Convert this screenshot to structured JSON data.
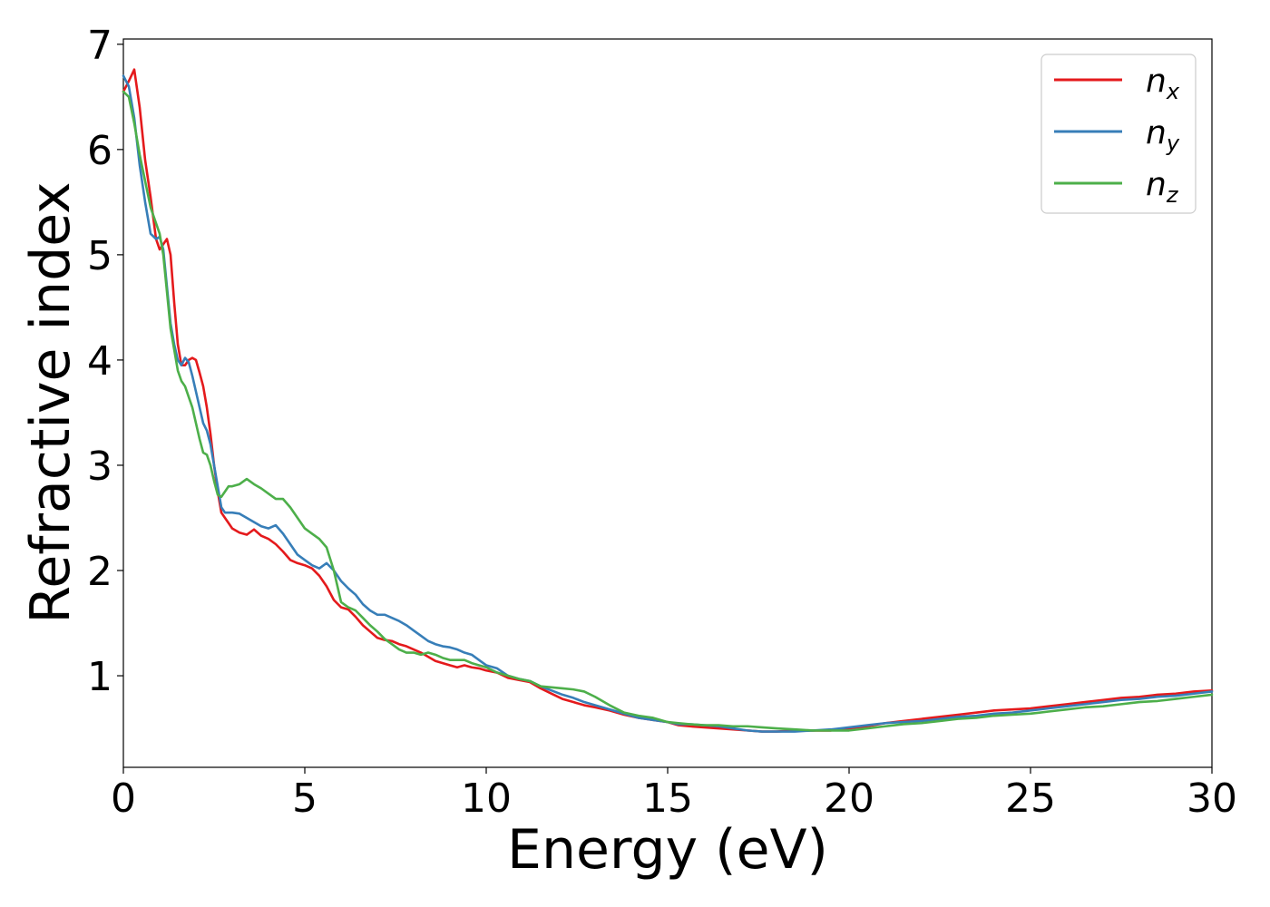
{
  "chart_data": {
    "type": "line",
    "title": "",
    "xlabel": "Energy (eV)",
    "ylabel": "Refractive index",
    "xlim": [
      0,
      30
    ],
    "ylim": [
      0.13,
      7.05
    ],
    "xticks": [
      0,
      5,
      10,
      15,
      20,
      25,
      30
    ],
    "yticks": [
      1,
      2,
      3,
      4,
      5,
      6,
      7
    ],
    "grid": false,
    "legend_position": "top-right",
    "series": [
      {
        "name": "n_x",
        "legend_base": "n",
        "legend_sub": "x",
        "color": "#e41a1c",
        "x": [
          0,
          0.15,
          0.3,
          0.45,
          0.6,
          0.75,
          0.9,
          1.0,
          1.1,
          1.2,
          1.3,
          1.4,
          1.5,
          1.6,
          1.7,
          1.8,
          1.9,
          2.0,
          2.1,
          2.2,
          2.3,
          2.4,
          2.5,
          2.6,
          2.7,
          2.8,
          2.9,
          3.0,
          3.2,
          3.4,
          3.6,
          3.8,
          4.0,
          4.2,
          4.4,
          4.6,
          4.8,
          5.0,
          5.2,
          5.4,
          5.6,
          5.8,
          6.0,
          6.2,
          6.4,
          6.6,
          6.8,
          7.0,
          7.2,
          7.4,
          7.6,
          7.8,
          8.0,
          8.2,
          8.4,
          8.6,
          8.8,
          9.0,
          9.2,
          9.4,
          9.6,
          9.8,
          10.0,
          10.3,
          10.6,
          10.9,
          11.2,
          11.5,
          11.8,
          12.1,
          12.4,
          12.7,
          13.0,
          13.4,
          13.8,
          14.2,
          14.6,
          15.0,
          15.3,
          15.6,
          16.0,
          16.4,
          16.8,
          17.2,
          17.6,
          18.0,
          18.5,
          19.0,
          19.5,
          20.0,
          20.5,
          21.0,
          21.5,
          22.0,
          22.5,
          23.0,
          23.5,
          24.0,
          24.5,
          25.0,
          25.5,
          26.0,
          26.5,
          27.0,
          27.5,
          28.0,
          28.5,
          29.0,
          29.5,
          30.0
        ],
        "y": [
          6.55,
          6.65,
          6.76,
          6.4,
          5.9,
          5.55,
          5.15,
          5.05,
          5.1,
          5.15,
          5.0,
          4.55,
          4.15,
          3.95,
          3.95,
          4.0,
          4.02,
          4.0,
          3.88,
          3.75,
          3.55,
          3.3,
          3.0,
          2.75,
          2.55,
          2.5,
          2.45,
          2.4,
          2.36,
          2.34,
          2.39,
          2.33,
          2.3,
          2.25,
          2.18,
          2.1,
          2.07,
          2.05,
          2.02,
          1.95,
          1.85,
          1.72,
          1.65,
          1.63,
          1.56,
          1.48,
          1.42,
          1.36,
          1.34,
          1.33,
          1.3,
          1.28,
          1.25,
          1.22,
          1.18,
          1.14,
          1.12,
          1.1,
          1.08,
          1.1,
          1.08,
          1.07,
          1.05,
          1.03,
          0.98,
          0.96,
          0.94,
          0.88,
          0.83,
          0.78,
          0.75,
          0.72,
          0.7,
          0.67,
          0.63,
          0.6,
          0.58,
          0.56,
          0.53,
          0.52,
          0.51,
          0.5,
          0.49,
          0.48,
          0.47,
          0.47,
          0.48,
          0.48,
          0.48,
          0.5,
          0.52,
          0.55,
          0.57,
          0.59,
          0.61,
          0.63,
          0.65,
          0.67,
          0.68,
          0.69,
          0.71,
          0.73,
          0.75,
          0.77,
          0.79,
          0.8,
          0.82,
          0.83,
          0.85,
          0.86
        ]
      },
      {
        "name": "n_y",
        "legend_base": "n",
        "legend_sub": "y",
        "color": "#377eb8",
        "x": [
          0,
          0.15,
          0.3,
          0.45,
          0.6,
          0.75,
          0.9,
          1.0,
          1.1,
          1.2,
          1.3,
          1.4,
          1.5,
          1.6,
          1.7,
          1.8,
          1.9,
          2.0,
          2.1,
          2.2,
          2.3,
          2.4,
          2.5,
          2.6,
          2.7,
          2.8,
          2.9,
          3.0,
          3.2,
          3.4,
          3.6,
          3.8,
          4.0,
          4.2,
          4.4,
          4.6,
          4.8,
          5.0,
          5.2,
          5.4,
          5.6,
          5.8,
          6.0,
          6.2,
          6.4,
          6.6,
          6.8,
          7.0,
          7.2,
          7.4,
          7.6,
          7.8,
          8.0,
          8.2,
          8.4,
          8.6,
          8.8,
          9.0,
          9.2,
          9.4,
          9.6,
          9.8,
          10.0,
          10.3,
          10.6,
          10.9,
          11.2,
          11.5,
          11.8,
          12.1,
          12.4,
          12.7,
          13.0,
          13.4,
          13.8,
          14.2,
          14.6,
          15.0,
          15.3,
          15.6,
          16.0,
          16.4,
          16.8,
          17.2,
          17.6,
          18.0,
          18.5,
          19.0,
          19.5,
          20.0,
          20.5,
          21.0,
          21.5,
          22.0,
          22.5,
          23.0,
          23.5,
          24.0,
          24.5,
          25.0,
          25.5,
          26.0,
          26.5,
          27.0,
          27.5,
          28.0,
          28.5,
          29.0,
          29.5,
          30.0
        ],
        "y": [
          6.7,
          6.6,
          6.3,
          5.85,
          5.5,
          5.2,
          5.15,
          5.17,
          5.05,
          4.7,
          4.35,
          4.15,
          4.0,
          3.95,
          4.02,
          3.98,
          3.85,
          3.7,
          3.55,
          3.4,
          3.33,
          3.2,
          3.0,
          2.8,
          2.6,
          2.55,
          2.55,
          2.55,
          2.54,
          2.5,
          2.46,
          2.42,
          2.4,
          2.43,
          2.35,
          2.25,
          2.15,
          2.1,
          2.05,
          2.02,
          2.07,
          2.0,
          1.9,
          1.83,
          1.77,
          1.68,
          1.62,
          1.58,
          1.58,
          1.55,
          1.52,
          1.48,
          1.43,
          1.38,
          1.33,
          1.3,
          1.28,
          1.27,
          1.25,
          1.22,
          1.2,
          1.15,
          1.1,
          1.07,
          1.0,
          0.97,
          0.95,
          0.9,
          0.86,
          0.82,
          0.79,
          0.75,
          0.72,
          0.68,
          0.64,
          0.6,
          0.58,
          0.56,
          0.54,
          0.54,
          0.53,
          0.52,
          0.5,
          0.48,
          0.47,
          0.47,
          0.47,
          0.48,
          0.49,
          0.51,
          0.53,
          0.55,
          0.56,
          0.57,
          0.59,
          0.61,
          0.62,
          0.64,
          0.65,
          0.67,
          0.69,
          0.71,
          0.73,
          0.75,
          0.77,
          0.78,
          0.8,
          0.81,
          0.83,
          0.85
        ]
      },
      {
        "name": "n_z",
        "legend_base": "n",
        "legend_sub": "z",
        "color": "#4daf4a",
        "x": [
          0,
          0.15,
          0.3,
          0.45,
          0.6,
          0.75,
          0.9,
          1.0,
          1.1,
          1.2,
          1.3,
          1.4,
          1.5,
          1.6,
          1.7,
          1.8,
          1.9,
          2.0,
          2.1,
          2.2,
          2.3,
          2.4,
          2.5,
          2.6,
          2.7,
          2.8,
          2.9,
          3.0,
          3.2,
          3.4,
          3.6,
          3.8,
          4.0,
          4.2,
          4.4,
          4.6,
          4.8,
          5.0,
          5.2,
          5.4,
          5.6,
          5.8,
          6.0,
          6.2,
          6.4,
          6.6,
          6.8,
          7.0,
          7.2,
          7.4,
          7.6,
          7.8,
          8.0,
          8.2,
          8.4,
          8.6,
          8.8,
          9.0,
          9.2,
          9.4,
          9.6,
          9.8,
          10.0,
          10.3,
          10.6,
          10.9,
          11.2,
          11.5,
          11.8,
          12.1,
          12.4,
          12.7,
          13.0,
          13.4,
          13.8,
          14.2,
          14.6,
          15.0,
          15.3,
          15.6,
          16.0,
          16.4,
          16.8,
          17.2,
          17.6,
          18.0,
          18.5,
          19.0,
          19.5,
          20.0,
          20.5,
          21.0,
          21.5,
          22.0,
          22.5,
          23.0,
          23.5,
          24.0,
          24.5,
          25.0,
          25.5,
          26.0,
          26.5,
          27.0,
          27.5,
          28.0,
          28.5,
          29.0,
          29.5,
          30.0
        ],
        "y": [
          6.55,
          6.5,
          6.25,
          5.95,
          5.7,
          5.45,
          5.3,
          5.2,
          5.0,
          4.65,
          4.3,
          4.1,
          3.9,
          3.8,
          3.75,
          3.65,
          3.55,
          3.4,
          3.25,
          3.12,
          3.1,
          3.0,
          2.85,
          2.72,
          2.7,
          2.75,
          2.8,
          2.8,
          2.82,
          2.87,
          2.82,
          2.78,
          2.73,
          2.68,
          2.68,
          2.6,
          2.5,
          2.4,
          2.35,
          2.3,
          2.22,
          2.0,
          1.7,
          1.65,
          1.62,
          1.55,
          1.48,
          1.42,
          1.35,
          1.3,
          1.25,
          1.22,
          1.22,
          1.2,
          1.22,
          1.2,
          1.17,
          1.15,
          1.15,
          1.15,
          1.12,
          1.1,
          1.08,
          1.03,
          1.0,
          0.97,
          0.95,
          0.9,
          0.89,
          0.88,
          0.87,
          0.85,
          0.8,
          0.72,
          0.65,
          0.62,
          0.6,
          0.56,
          0.55,
          0.54,
          0.53,
          0.53,
          0.52,
          0.52,
          0.51,
          0.5,
          0.49,
          0.48,
          0.48,
          0.48,
          0.5,
          0.52,
          0.54,
          0.55,
          0.57,
          0.59,
          0.6,
          0.62,
          0.63,
          0.64,
          0.66,
          0.68,
          0.7,
          0.71,
          0.73,
          0.75,
          0.76,
          0.78,
          0.8,
          0.82
        ]
      }
    ]
  }
}
